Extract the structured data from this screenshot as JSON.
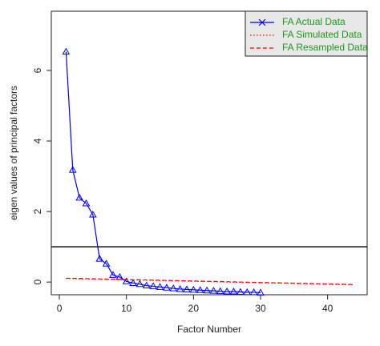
{
  "chart_data": {
    "type": "line",
    "xlabel": "Factor Number",
    "ylabel": "eigen values of principal factors",
    "xlim": [
      -1.2,
      45.9
    ],
    "ylim": [
      -0.36,
      7.68
    ],
    "xticks": [
      0,
      10,
      20,
      30,
      40
    ],
    "yticks": [
      0,
      2,
      4,
      6
    ],
    "hline": 1,
    "legend": "top-right",
    "series": [
      {
        "name": "FA  Actual Data",
        "color": "#0000ff",
        "style": "solid",
        "marker": "triangle",
        "x": [
          1,
          2,
          3,
          4,
          5,
          6,
          7,
          8,
          9,
          10,
          11,
          12,
          13,
          14,
          15,
          16,
          17,
          18,
          19,
          20,
          21,
          22,
          23,
          24,
          25,
          26,
          27,
          28,
          29,
          30
        ],
        "values": [
          6.53,
          3.18,
          2.39,
          2.23,
          1.91,
          0.66,
          0.52,
          0.2,
          0.14,
          0.02,
          -0.03,
          -0.06,
          -0.1,
          -0.12,
          -0.14,
          -0.16,
          -0.18,
          -0.2,
          -0.21,
          -0.22,
          -0.23,
          -0.24,
          -0.25,
          -0.26,
          -0.27,
          -0.27,
          -0.28,
          -0.29,
          -0.29,
          -0.3
        ]
      },
      {
        "name": "FA  Simulated Data",
        "color": "#ff0000",
        "style": "dotted",
        "x": [
          1,
          44
        ],
        "values": [
          0.1,
          -0.08
        ]
      },
      {
        "name": "FA  Resampled Data",
        "color": "#ff0000",
        "style": "dashed",
        "x": [
          1,
          44
        ],
        "values": [
          0.11,
          -0.07
        ]
      }
    ]
  }
}
